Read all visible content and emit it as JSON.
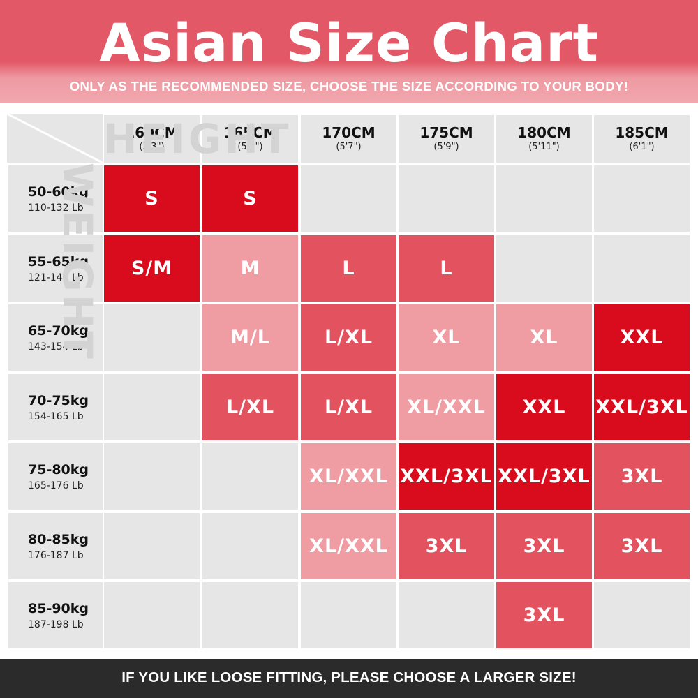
{
  "header": {
    "title": "Asian Size Chart",
    "subtitle": "ONLY AS THE RECOMMENDED SIZE, CHOOSE THE SIZE ACCORDING TO YOUR BODY!"
  },
  "watermarks": {
    "height": "HEIGHT",
    "weight": "WEIGHT"
  },
  "columns": [
    {
      "cm": "160CM",
      "ft": "(5'3\")"
    },
    {
      "cm": "165CM",
      "ft": "(5'5\")"
    },
    {
      "cm": "170CM",
      "ft": "(5'7\")"
    },
    {
      "cm": "175CM",
      "ft": "(5'9\")"
    },
    {
      "cm": "180CM",
      "ft": "(5'11\")"
    },
    {
      "cm": "185CM",
      "ft": "(6'1\")"
    }
  ],
  "rows": [
    {
      "kg": "50-60kg",
      "lb": "110-132 Lb",
      "cells": [
        {
          "t": "S",
          "c": "red"
        },
        {
          "t": "S",
          "c": "red"
        },
        {
          "t": "",
          "c": "gray"
        },
        {
          "t": "",
          "c": "gray"
        },
        {
          "t": "",
          "c": "gray"
        },
        {
          "t": "",
          "c": "gray"
        }
      ]
    },
    {
      "kg": "55-65kg",
      "lb": "121-143 Lb",
      "cells": [
        {
          "t": "S/M",
          "c": "red"
        },
        {
          "t": "M",
          "c": "pink"
        },
        {
          "t": "L",
          "c": "rose"
        },
        {
          "t": "L",
          "c": "rose"
        },
        {
          "t": "",
          "c": "gray"
        },
        {
          "t": "",
          "c": "gray"
        }
      ]
    },
    {
      "kg": "65-70kg",
      "lb": "143-154 Lb",
      "cells": [
        {
          "t": "",
          "c": "gray"
        },
        {
          "t": "M/L",
          "c": "pink"
        },
        {
          "t": "L/XL",
          "c": "rose"
        },
        {
          "t": "XL",
          "c": "pink"
        },
        {
          "t": "XL",
          "c": "pink"
        },
        {
          "t": "XXL",
          "c": "red"
        }
      ]
    },
    {
      "kg": "70-75kg",
      "lb": "154-165 Lb",
      "cells": [
        {
          "t": "",
          "c": "gray"
        },
        {
          "t": "L/XL",
          "c": "rose"
        },
        {
          "t": "L/XL",
          "c": "rose"
        },
        {
          "t": "XL/XXL",
          "c": "pink"
        },
        {
          "t": "XXL",
          "c": "red"
        },
        {
          "t": "XXL/3XL",
          "c": "red"
        }
      ]
    },
    {
      "kg": "75-80kg",
      "lb": "165-176 Lb",
      "cells": [
        {
          "t": "",
          "c": "gray"
        },
        {
          "t": "",
          "c": "gray"
        },
        {
          "t": "XL/XXL",
          "c": "pink"
        },
        {
          "t": "XXL/3XL",
          "c": "red"
        },
        {
          "t": "XXL/3XL",
          "c": "red"
        },
        {
          "t": "3XL",
          "c": "rose"
        }
      ]
    },
    {
      "kg": "80-85kg",
      "lb": "176-187 Lb",
      "cells": [
        {
          "t": "",
          "c": "gray"
        },
        {
          "t": "",
          "c": "gray"
        },
        {
          "t": "XL/XXL",
          "c": "pink"
        },
        {
          "t": "3XL",
          "c": "rose"
        },
        {
          "t": "3XL",
          "c": "rose"
        },
        {
          "t": "3XL",
          "c": "rose"
        }
      ]
    },
    {
      "kg": "85-90kg",
      "lb": "187-198 Lb",
      "cells": [
        {
          "t": "",
          "c": "gray"
        },
        {
          "t": "",
          "c": "gray"
        },
        {
          "t": "",
          "c": "gray"
        },
        {
          "t": "",
          "c": "gray"
        },
        {
          "t": "3XL",
          "c": "rose"
        },
        {
          "t": "",
          "c": "gray"
        }
      ]
    }
  ],
  "colors": {
    "red": "#d80c1c",
    "rose": "#e2535f",
    "pink": "#ef9da3",
    "gray": "#e6e6e6",
    "header_top": "#e25866",
    "footer_bg": "#2b2b2b"
  },
  "footer": {
    "text": "IF YOU LIKE LOOSE FITTING, PLEASE CHOOSE A LARGER SIZE!"
  }
}
